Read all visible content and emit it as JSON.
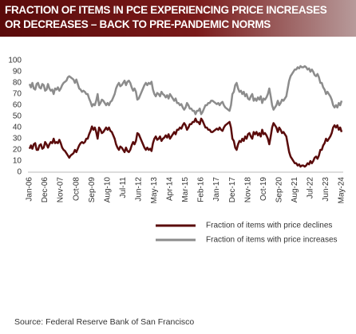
{
  "chart_data": {
    "type": "line",
    "title": [
      "FRACTION OF ITEMS IN PCE EXPERIENCING PRICE INCREASES",
      "OR DECREASES – BACK TO PRE-PANDEMIC NORMS"
    ],
    "source": "Source: Federal Reserve Bank of San Francisco",
    "categories": [
      "Jan-06",
      null,
      null,
      null,
      null,
      null,
      null,
      null,
      null,
      null,
      null,
      "Dec-06",
      null,
      null,
      null,
      null,
      null,
      null,
      null,
      null,
      null,
      null,
      "Nov-07",
      null,
      null,
      null,
      null,
      null,
      null,
      null,
      null,
      null,
      null,
      "Oct-08",
      null,
      null,
      null,
      null,
      null,
      null,
      null,
      null,
      null,
      null,
      "Sep-09",
      null,
      null,
      null,
      null,
      null,
      null,
      null,
      null,
      null,
      null,
      "Aug-10",
      null,
      null,
      null,
      null,
      null,
      null,
      null,
      null,
      null,
      null,
      "Jul-11",
      null,
      null,
      null,
      null,
      null,
      null,
      null,
      null,
      null,
      null,
      "Jun-12",
      null,
      null,
      null,
      null,
      null,
      null,
      null,
      null,
      null,
      null,
      "May-13",
      null,
      null,
      null,
      null,
      null,
      null,
      null,
      null,
      null,
      null,
      "Apr-14",
      null,
      null,
      null,
      null,
      null,
      null,
      null,
      null,
      null,
      null,
      "Mar-15",
      null,
      null,
      null,
      null,
      null,
      null,
      null,
      null,
      null,
      null,
      "Feb-16",
      null,
      null,
      null,
      null,
      null,
      null,
      null,
      null,
      null,
      null,
      "Jan-17",
      null,
      null,
      null,
      null,
      null,
      null,
      null,
      null,
      null,
      null,
      "Dec-17",
      null,
      null,
      null,
      null,
      null,
      null,
      null,
      null,
      null,
      null,
      "Nov-18",
      null,
      null,
      null,
      null,
      null,
      null,
      null,
      null,
      null,
      null,
      "Oct-19",
      null,
      null,
      null,
      null,
      null,
      null,
      null,
      null,
      null,
      null,
      "Sep-20",
      null,
      null,
      null,
      null,
      null,
      null,
      null,
      null,
      null,
      null,
      "Aug-21",
      null,
      null,
      null,
      null,
      null,
      null,
      null,
      null,
      null,
      null,
      "Jul-22",
      null,
      null,
      null,
      null,
      null,
      null,
      null,
      null,
      null,
      null,
      "Jun-23",
      null,
      null,
      null,
      null,
      null,
      null,
      null,
      null,
      null,
      null,
      "May-24"
    ],
    "series": [
      {
        "name": "Fraction of items with price declines",
        "color": "#5a0b0b",
        "values": [
          21,
          24,
          21,
          25,
          26,
          20,
          20,
          24,
          25,
          21,
          22,
          27,
          25,
          22,
          25,
          27,
          26,
          30,
          26,
          27,
          26,
          29,
          26,
          22,
          20,
          19,
          17,
          15,
          13,
          15,
          16,
          17,
          20,
          18,
          21,
          24,
          26,
          27,
          26,
          27,
          30,
          30,
          34,
          37,
          41,
          38,
          40,
          36,
          30,
          40,
          38,
          35,
          36,
          38,
          40,
          38,
          40,
          37,
          36,
          33,
          30,
          25,
          22,
          20,
          23,
          22,
          20,
          18,
          22,
          19,
          18,
          20,
          24,
          27,
          25,
          28,
          35,
          34,
          31,
          28,
          25,
          22,
          20,
          22,
          20,
          21,
          19,
          26,
          30,
          32,
          29,
          30,
          32,
          28,
          30,
          31,
          33,
          31,
          34,
          30,
          32,
          34,
          36,
          34,
          38,
          38,
          40,
          39,
          42,
          44,
          42,
          38,
          40,
          43,
          43,
          45,
          45,
          48,
          45,
          45,
          43,
          48,
          46,
          43,
          40,
          40,
          38,
          38,
          36,
          36,
          37,
          38,
          39,
          38,
          40,
          38,
          37,
          40,
          42,
          43,
          44,
          45,
          40,
          30,
          28,
          22,
          20,
          25,
          28,
          27,
          30,
          28,
          32,
          30,
          34,
          35,
          32,
          30,
          36,
          34,
          36,
          33,
          35,
          32,
          38,
          34,
          35,
          33,
          30,
          25,
          32,
          40,
          44,
          42,
          40,
          36,
          40,
          38,
          35,
          36,
          34,
          32,
          25,
          18,
          14,
          12,
          10,
          8,
          8,
          6,
          7,
          5,
          6,
          6,
          5,
          6,
          8,
          7,
          10,
          8,
          10,
          13,
          14,
          12,
          15,
          20,
          20,
          24,
          26,
          30,
          28,
          30,
          32,
          35,
          40,
          42,
          40,
          42,
          38,
          40,
          36
        ]
      },
      {
        "name": "Fraction of items with price increases",
        "color": "#8c8c8c",
        "values": [
          79,
          76,
          80,
          75,
          74,
          79,
          80,
          76,
          75,
          79,
          78,
          73,
          74,
          79,
          75,
          73,
          74,
          70,
          75,
          74,
          76,
          73,
          75,
          78,
          80,
          81,
          82,
          85,
          86,
          85,
          84,
          83,
          80,
          83,
          79,
          75,
          74,
          72,
          73,
          72,
          70,
          70,
          66,
          63,
          59,
          61,
          60,
          64,
          70,
          60,
          62,
          65,
          64,
          62,
          60,
          62,
          60,
          63,
          64,
          67,
          70,
          75,
          78,
          80,
          77,
          78,
          80,
          82,
          78,
          81,
          82,
          80,
          76,
          73,
          75,
          72,
          65,
          66,
          69,
          72,
          75,
          78,
          80,
          78,
          80,
          79,
          81,
          74,
          70,
          68,
          71,
          70,
          68,
          72,
          70,
          69,
          67,
          69,
          66,
          70,
          68,
          66,
          64,
          66,
          62,
          62,
          60,
          61,
          58,
          56,
          58,
          62,
          60,
          57,
          57,
          55,
          55,
          52,
          55,
          55,
          57,
          52,
          54,
          57,
          60,
          60,
          62,
          62,
          64,
          64,
          63,
          62,
          61,
          62,
          60,
          62,
          63,
          60,
          58,
          57,
          56,
          55,
          60,
          70,
          72,
          78,
          80,
          75,
          72,
          73,
          70,
          72,
          68,
          70,
          66,
          65,
          68,
          70,
          64,
          66,
          64,
          67,
          65,
          68,
          62,
          66,
          65,
          67,
          70,
          75,
          68,
          60,
          56,
          58,
          60,
          64,
          60,
          62,
          65,
          64,
          66,
          68,
          75,
          82,
          86,
          88,
          90,
          92,
          92,
          94,
          93,
          95,
          94,
          94,
          95,
          94,
          92,
          93,
          90,
          92,
          90,
          87,
          86,
          88,
          85,
          80,
          80,
          76,
          74,
          70,
          72,
          70,
          68,
          65,
          60,
          58,
          60,
          58,
          62,
          60,
          64
        ]
      }
    ],
    "ylim": [
      0,
      100
    ],
    "yticks": [
      0,
      10,
      20,
      30,
      40,
      50,
      60,
      70,
      80,
      90,
      100
    ],
    "grid": false,
    "legend": "bottom"
  }
}
